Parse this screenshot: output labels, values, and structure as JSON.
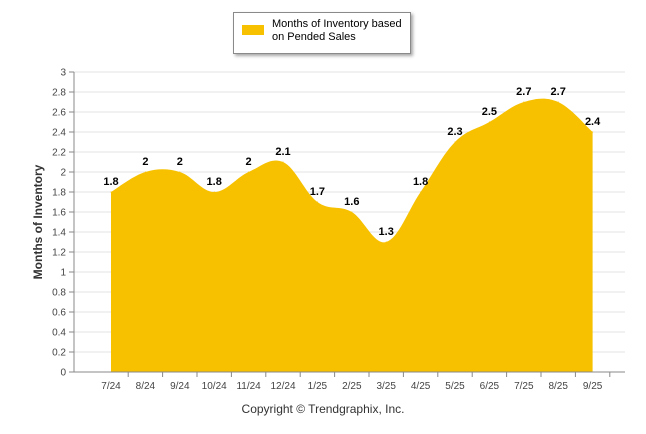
{
  "chart_data": {
    "type": "area",
    "title": "",
    "xlabel": "",
    "ylabel": "Months of Inventory",
    "ylim": [
      0,
      3
    ],
    "ytick_step": 0.2,
    "yticks": [
      "0",
      "0.2",
      "0.4",
      "0.6",
      "0.8",
      "1",
      "1.2",
      "1.4",
      "1.6",
      "1.8",
      "2",
      "2.2",
      "2.4",
      "2.6",
      "2.8",
      "3"
    ],
    "grid": true,
    "legend_position": "top-center",
    "categories": [
      "7/24",
      "8/24",
      "9/24",
      "10/24",
      "11/24",
      "12/24",
      "1/25",
      "2/25",
      "3/25",
      "4/25",
      "5/25",
      "6/25",
      "7/25",
      "8/25",
      "9/25"
    ],
    "series": [
      {
        "name": "Months of Inventory based on Pended Sales",
        "color": "#F7C100",
        "values": [
          1.8,
          2,
          2,
          1.8,
          2,
          2.1,
          1.7,
          1.6,
          1.3,
          1.8,
          2.3,
          2.5,
          2.7,
          2.7,
          2.4
        ],
        "labels": [
          "1.8",
          "2",
          "2",
          "1.8",
          "2",
          "2.1",
          "1.7",
          "1.6",
          "1.3",
          "1.8",
          "2.3",
          "2.5",
          "2.7",
          "2.7",
          "2.4"
        ]
      }
    ]
  },
  "legend": {
    "text": "Months of Inventory based on Pended Sales",
    "color": "#F7C100"
  },
  "footer": {
    "copyright": "Copyright © Trendgraphix, Inc."
  }
}
